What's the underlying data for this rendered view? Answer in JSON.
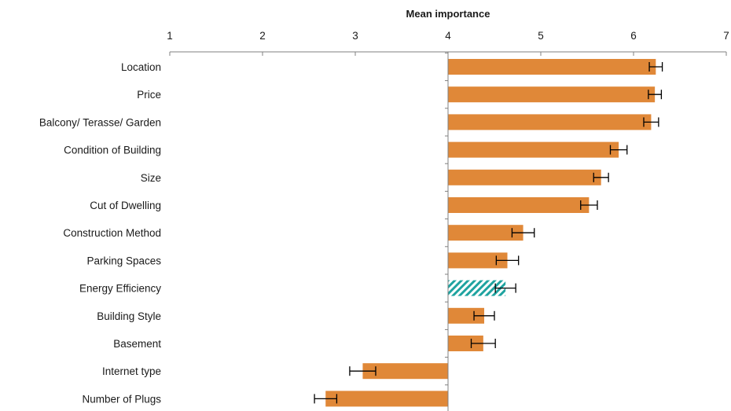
{
  "chart_data": {
    "type": "bar",
    "orientation": "horizontal",
    "xlabel": "Mean importance",
    "xaxis_position": "top",
    "xlim": [
      1,
      7
    ],
    "xticks": [
      "1",
      "2",
      "3",
      "4",
      "5",
      "6",
      "7"
    ],
    "baseline": 4,
    "grid": false,
    "categories": [
      "Location",
      "Price",
      "Balcony/ Terasse/ Garden",
      "Condition of Building",
      "Size",
      "Cut of Dwelling",
      "Construction Method",
      "Parking Spaces",
      "Energy Efficiency",
      "Building Style",
      "Basement",
      "Internet type",
      "Number of Plugs"
    ],
    "values": [
      6.24,
      6.23,
      6.19,
      5.84,
      5.65,
      5.52,
      4.81,
      4.64,
      4.62,
      4.39,
      4.38,
      3.08,
      2.68
    ],
    "error": [
      0.07,
      0.07,
      0.08,
      0.09,
      0.08,
      0.09,
      0.12,
      0.12,
      0.11,
      0.11,
      0.13,
      0.14,
      0.12
    ],
    "highlight": "Energy Efficiency",
    "colors": {
      "bar": "#E08838",
      "highlight": "#1FA3A0",
      "axis": "#808080",
      "error_bar": "#000000"
    }
  }
}
